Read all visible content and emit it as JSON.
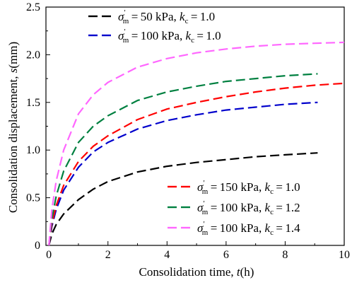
{
  "chart_data": {
    "type": "line",
    "title": "",
    "xlabel": "Consolidation time,",
    "xlabel_var": "t",
    "xlabel_unit": "h",
    "ylabel": "Consolidation displacement,",
    "ylabel_var": "s",
    "ylabel_unit": "mm",
    "xlim": [
      -0.1,
      10
    ],
    "ylim": [
      0,
      2.5
    ],
    "xticks": [
      0,
      2,
      4,
      6,
      8,
      10
    ],
    "yticks": [
      0,
      0.5,
      1.0,
      1.5,
      2.0,
      2.5
    ],
    "ytick_labels": [
      "0",
      "0.5",
      "1.0",
      "1.5",
      "2.0",
      "2.5"
    ],
    "grid": false,
    "line_style": "dashed",
    "series": [
      {
        "name": "σ′m = 50 kPa, kc = 1.0",
        "sigma": "50 kPa",
        "kc": "1.0",
        "color": "#000000",
        "legend_group": "top-left",
        "x": [
          0,
          0.1,
          0.25,
          0.5,
          1,
          1.5,
          2,
          3,
          4,
          5,
          6,
          7,
          8,
          9.1
        ],
        "y": [
          0,
          0.12,
          0.22,
          0.33,
          0.48,
          0.59,
          0.67,
          0.77,
          0.83,
          0.87,
          0.9,
          0.93,
          0.95,
          0.97
        ]
      },
      {
        "name": "σ′m = 100 kPa, kc = 1.0",
        "sigma": "100 kPa",
        "kc": "1.0",
        "color": "#0000cc",
        "legend_group": "top-left",
        "x": [
          0,
          0.1,
          0.25,
          0.5,
          1,
          1.5,
          2,
          3,
          4,
          5,
          6,
          7,
          8,
          9.1
        ],
        "y": [
          0,
          0.2,
          0.38,
          0.58,
          0.82,
          0.98,
          1.08,
          1.22,
          1.31,
          1.37,
          1.42,
          1.45,
          1.48,
          1.5
        ]
      },
      {
        "name": "σ′m = 150 kPa, kc = 1.0",
        "sigma": "150 kPa",
        "kc": "1.0",
        "color": "#ff0000",
        "legend_group": "bottom-right",
        "x": [
          0,
          0.1,
          0.25,
          0.5,
          1,
          1.5,
          2,
          3,
          4,
          5,
          6,
          7,
          8,
          9,
          10
        ],
        "y": [
          0,
          0.23,
          0.42,
          0.63,
          0.88,
          1.04,
          1.15,
          1.32,
          1.43,
          1.5,
          1.56,
          1.61,
          1.65,
          1.68,
          1.7
        ]
      },
      {
        "name": "σ′m = 100 kPa, kc = 1.2",
        "sigma": "100 kPa",
        "kc": "1.2",
        "color": "#008040",
        "legend_group": "bottom-right",
        "x": [
          0,
          0.1,
          0.25,
          0.5,
          1,
          1.5,
          2,
          3,
          4,
          5,
          6,
          7,
          8,
          9.1
        ],
        "y": [
          0,
          0.28,
          0.52,
          0.78,
          1.08,
          1.25,
          1.36,
          1.52,
          1.61,
          1.67,
          1.72,
          1.75,
          1.78,
          1.8
        ]
      },
      {
        "name": "σ′m = 100 kPa, kc = 1.4",
        "sigma": "100 kPa",
        "kc": "1.4",
        "color": "#ff66ff",
        "legend_group": "bottom-right",
        "x": [
          0,
          0.1,
          0.25,
          0.5,
          1,
          1.5,
          2,
          3,
          4,
          5,
          6,
          7,
          8,
          9,
          10
        ],
        "y": [
          0,
          0.38,
          0.68,
          1.0,
          1.38,
          1.58,
          1.71,
          1.87,
          1.96,
          2.02,
          2.06,
          2.09,
          2.11,
          2.12,
          2.13
        ]
      }
    ]
  }
}
